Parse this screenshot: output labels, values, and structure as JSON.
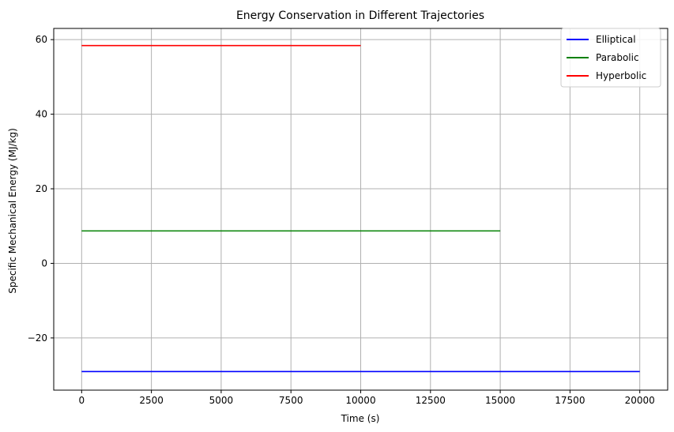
{
  "chart_data": {
    "type": "line",
    "title": "Energy Conservation in Different Trajectories",
    "xlabel": "Time (s)",
    "ylabel": "Specific Mechanical Energy (MJ/kg)",
    "xlim": [
      -1000,
      21000
    ],
    "ylim": [
      -34,
      63
    ],
    "x_ticks": [
      0,
      2500,
      5000,
      7500,
      10000,
      12500,
      15000,
      17500,
      20000
    ],
    "x_tick_labels": [
      "0",
      "2500",
      "5000",
      "7500",
      "10000",
      "12500",
      "15000",
      "17500",
      "20000"
    ],
    "y_ticks": [
      -20,
      0,
      20,
      40,
      60
    ],
    "y_tick_labels": [
      "−20",
      "0",
      "20",
      "40",
      "60"
    ],
    "grid": true,
    "legend_position": "top-right",
    "series": [
      {
        "name": "Elliptical",
        "color": "#0000ff",
        "x": [
          0,
          20000
        ],
        "y": [
          -29.0,
          -29.0
        ]
      },
      {
        "name": "Parabolic",
        "color": "#008000",
        "x": [
          0,
          15000
        ],
        "y": [
          8.7,
          8.7
        ]
      },
      {
        "name": "Hyperbolic",
        "color": "#ff0000",
        "x": [
          0,
          10000
        ],
        "y": [
          58.4,
          58.4
        ]
      }
    ]
  }
}
